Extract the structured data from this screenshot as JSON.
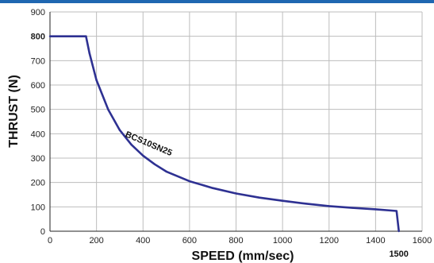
{
  "chart_data": {
    "type": "line",
    "xlabel": "SPEED (mm/sec)",
    "ylabel": "THRUST (N)",
    "xlim": [
      0,
      1600
    ],
    "ylim": [
      0,
      900
    ],
    "xticks": [
      0,
      200,
      400,
      600,
      800,
      1000,
      1200,
      1400,
      1600
    ],
    "yticks": [
      0,
      100,
      200,
      300,
      400,
      500,
      600,
      700,
      800,
      900
    ],
    "grid": true,
    "highlight_ytick": 800,
    "series": [
      {
        "name": "BCS10SN25",
        "color": "#2e3192",
        "x": [
          0,
          155,
          170,
          200,
          250,
          300,
          350,
          400,
          450,
          500,
          600,
          700,
          800,
          900,
          1000,
          1100,
          1200,
          1300,
          1400,
          1490,
          1500
        ],
        "y": [
          800,
          800,
          730,
          620,
          500,
          415,
          355,
          310,
          275,
          245,
          205,
          177,
          155,
          138,
          125,
          113,
          103,
          96,
          90,
          83,
          0
        ]
      }
    ],
    "annotations": [
      {
        "text": "1500",
        "x": 1500
      }
    ]
  }
}
